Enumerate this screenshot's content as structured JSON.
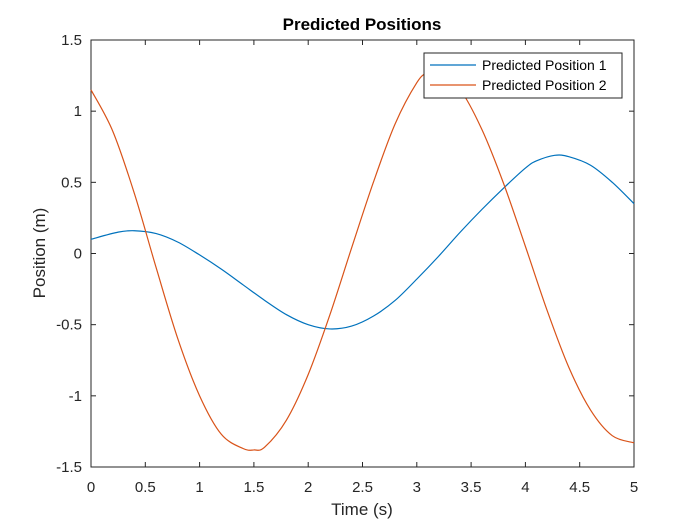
{
  "chart_data": {
    "type": "line",
    "title": "Predicted Positions",
    "xlabel": "Time (s)",
    "ylabel": "Position (m)",
    "xlim": [
      0,
      5
    ],
    "ylim": [
      -1.5,
      1.5
    ],
    "xticks": [
      0,
      0.5,
      1,
      1.5,
      2,
      2.5,
      3,
      3.5,
      4,
      4.5,
      5
    ],
    "xtick_labels": [
      "0",
      "0.5",
      "1",
      "1.5",
      "2",
      "2.5",
      "3",
      "3.5",
      "4",
      "4.5",
      "5"
    ],
    "yticks": [
      -1.5,
      -1,
      -0.5,
      0,
      0.5,
      1,
      1.5
    ],
    "ytick_labels": [
      "-1.5",
      "-1",
      "-0.5",
      "0",
      "0.5",
      "1",
      "1.5"
    ],
    "grid": false,
    "legend_position": "top-right",
    "series": [
      {
        "name": "Predicted Position 1",
        "color": "#0072BD",
        "x": [
          0,
          0.25,
          0.4,
          0.6,
          0.8,
          1,
          1.2,
          1.4,
          1.6,
          1.8,
          2,
          2.2,
          2.4,
          2.6,
          2.8,
          3,
          3.2,
          3.4,
          3.6,
          3.8,
          4,
          4.1,
          4.27,
          4.4,
          4.6,
          4.8,
          5
        ],
        "y": [
          0.1,
          0.15,
          0.16,
          0.14,
          0.08,
          -0.01,
          -0.11,
          -0.22,
          -0.33,
          -0.43,
          -0.5,
          -0.53,
          -0.51,
          -0.44,
          -0.33,
          -0.18,
          -0.02,
          0.15,
          0.31,
          0.46,
          0.6,
          0.65,
          0.69,
          0.68,
          0.62,
          0.5,
          0.35
        ]
      },
      {
        "name": "Predicted Position 2",
        "color": "#D95319",
        "x": [
          0,
          0.2,
          0.4,
          0.6,
          0.8,
          1,
          1.2,
          1.4,
          1.5,
          1.6,
          1.8,
          2,
          2.2,
          2.4,
          2.6,
          2.8,
          3,
          3.1,
          3.2,
          3.4,
          3.6,
          3.8,
          4,
          4.2,
          4.4,
          4.6,
          4.8,
          5
        ],
        "y": [
          1.15,
          0.86,
          0.42,
          -0.1,
          -0.6,
          -1.0,
          -1.27,
          -1.37,
          -1.38,
          -1.36,
          -1.17,
          -0.85,
          -0.43,
          0.04,
          0.5,
          0.91,
          1.2,
          1.27,
          1.27,
          1.15,
          0.87,
          0.49,
          0.05,
          -0.4,
          -0.8,
          -1.1,
          -1.28,
          -1.33
        ]
      }
    ]
  }
}
